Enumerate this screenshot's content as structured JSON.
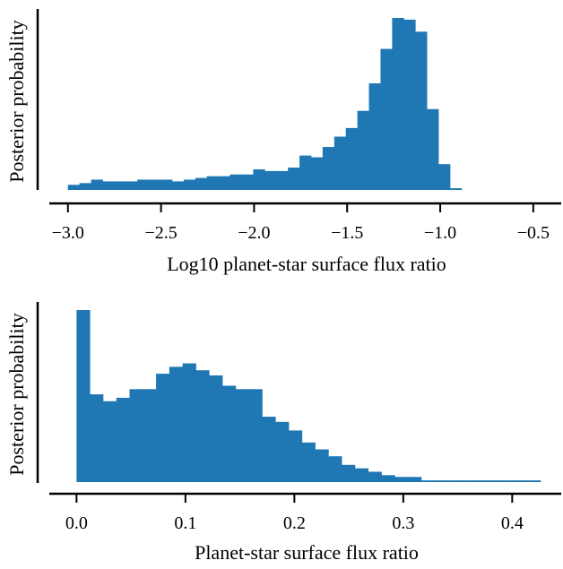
{
  "chart_data": [
    {
      "type": "histogram",
      "xlabel": "Log10 planet-star surface flux ratio",
      "ylabel": "Posterior probability",
      "xlim": [
        -3.1,
        -0.35
      ],
      "xticks": [
        -3.0,
        -2.5,
        -2.0,
        -1.5,
        -1.0,
        -0.5
      ],
      "xtick_labels": [
        "−3.0",
        "−2.5",
        "−2.0",
        "−1.5",
        "−1.0",
        "−0.5"
      ],
      "bin_start": -3.0,
      "bin_width": 0.0622,
      "bin_heights": [
        3,
        4,
        6,
        5,
        5,
        5,
        6,
        6,
        6,
        5,
        6,
        7,
        8,
        8,
        9,
        9,
        12,
        11,
        11,
        13,
        20,
        19,
        25,
        31,
        36,
        46,
        62,
        82,
        100,
        99,
        92,
        47,
        15,
        1
      ],
      "ylim": [
        0,
        100
      ],
      "bar_color": "#1f77b4",
      "grid": false
    },
    {
      "type": "histogram",
      "xlabel": "Planet-star surface flux ratio",
      "ylabel": "Posterior probability",
      "xlim": [
        -0.025,
        0.445
      ],
      "xticks": [
        0.0,
        0.1,
        0.2,
        0.3,
        0.4
      ],
      "xtick_labels": [
        "0.0",
        "0.1",
        "0.2",
        "0.3",
        "0.4"
      ],
      "bin_start": 0.0,
      "bin_width": 0.01217,
      "bin_heights": [
        100,
        51,
        47,
        49,
        54,
        54,
        63,
        67,
        69,
        65,
        62,
        56,
        54,
        54,
        38,
        35,
        30,
        23,
        19,
        15,
        10,
        8,
        6,
        4,
        3,
        3,
        1,
        1,
        1,
        1,
        1,
        1,
        1,
        1,
        1
      ],
      "ylim": [
        0,
        100
      ],
      "bar_color": "#1f77b4",
      "grid": false
    }
  ]
}
